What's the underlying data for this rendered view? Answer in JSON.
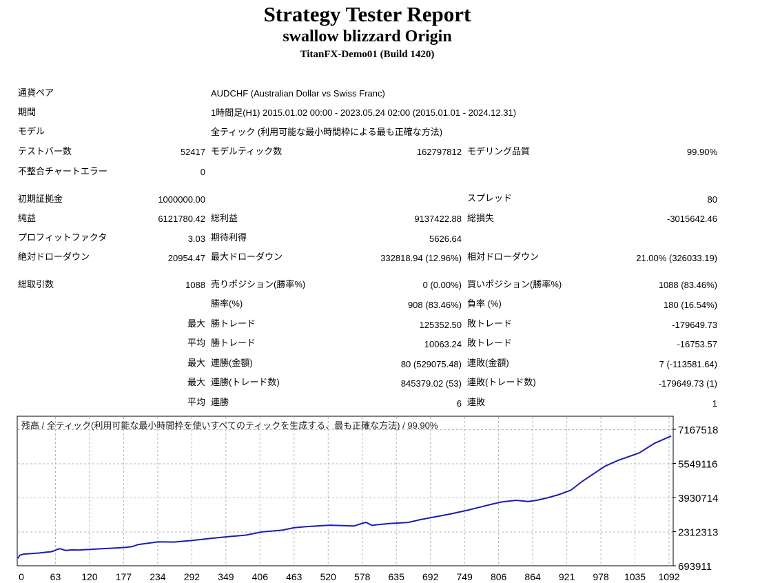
{
  "report": {
    "title": "Strategy Tester Report",
    "expert": "swallow blizzard Origin",
    "server": "TitanFX-Demo01 (Build 1420)"
  },
  "settings": {
    "symbol_label": "通貨ペア",
    "symbol_value": "AUDCHF (Australian Dollar vs Swiss Franc)",
    "period_label": "期間",
    "period_value": "1時間足(H1) 2015.01.02 00:00 - 2023.05.24 02:00 (2015.01.01 - 2024.12.31)",
    "model_label": "モデル",
    "model_value": "全ティック (利用可能な最小時間枠による最も正確な方法)",
    "bars_label": "テストバー数",
    "bars_value": "52417",
    "ticks_label": "モデルティック数",
    "ticks_value": "162797812",
    "quality_label": "モデリング品質",
    "quality_value": "99.90%",
    "errors_label": "不整合チャートエラー",
    "errors_value": "0"
  },
  "results": {
    "deposit_label": "初期証拠金",
    "deposit_value": "1000000.00",
    "spread_label": "スプレッド",
    "spread_value": "80",
    "net_label": "純益",
    "net_value": "6121780.42",
    "gross_profit_label": "総利益",
    "gross_profit_value": "9137422.88",
    "gross_loss_label": "総損失",
    "gross_loss_value": "-3015642.46",
    "pf_label": "プロフィットファクタ",
    "pf_value": "3.03",
    "payoff_label": "期待利得",
    "payoff_value": "5626.64",
    "abs_dd_label": "絶対ドローダウン",
    "abs_dd_value": "20954.47",
    "max_dd_label": "最大ドローダウン",
    "max_dd_value": "332818.94 (12.96%)",
    "rel_dd_label": "相対ドローダウン",
    "rel_dd_value": "21.00% (326033.19)"
  },
  "trades": {
    "total_label": "総取引数",
    "total_value": "1088",
    "short_label": "売りポジション(勝率%)",
    "short_value": "0 (0.00%)",
    "long_label": "買いポジション(勝率%)",
    "long_value": "1088 (83.46%)",
    "win_label": "勝率(%)",
    "win_value": "908 (83.46%)",
    "loss_label": "負率 (%)",
    "loss_value": "180 (16.54%)",
    "max_prefix": "最大",
    "avg_prefix": "平均",
    "largest_win_label": "勝トレード",
    "largest_win_value": "125352.50",
    "largest_loss_label": "敗トレード",
    "largest_loss_value": "-179649.73",
    "avg_win_label": "勝トレード",
    "avg_win_value": "10063.24",
    "avg_loss_label": "敗トレード",
    "avg_loss_value": "-16753.57",
    "max_consec_wins_amt_label": "連勝(金額)",
    "max_consec_wins_amt_value": "80 (529075.48)",
    "max_consec_loss_amt_label": "連敗(金額)",
    "max_consec_loss_amt_value": "7 (-113581.64)",
    "max_consec_wins_cnt_label": "連勝(トレード数)",
    "max_consec_wins_cnt_value": "845379.02 (53)",
    "max_consec_loss_cnt_label": "連敗(トレード数)",
    "max_consec_loss_cnt_value": "-179649.73 (1)",
    "avg_consec_wins_label": "連勝",
    "avg_consec_wins_value": "6",
    "avg_consec_loss_label": "連敗",
    "avg_consec_loss_value": "1"
  },
  "chart_data": {
    "type": "line",
    "title": "残高 / 全ティック(利用可能な最小時間枠を使いすべてのティックを生成する、最も正確な方法) / 99.90%",
    "x_ticks": [
      "0",
      "63",
      "120",
      "177",
      "234",
      "292",
      "349",
      "406",
      "463",
      "520",
      "578",
      "635",
      "692",
      "749",
      "806",
      "864",
      "921",
      "978",
      "1035",
      "1092"
    ],
    "y_ticks": [
      "7167518",
      "5549116",
      "3930714",
      "2312313",
      "693911"
    ],
    "xlim": [
      0,
      1088
    ],
    "ylim": [
      693911,
      7167518
    ],
    "grid": true,
    "line_color": "#1c1cb4",
    "series": [
      {
        "x": [
          0,
          3,
          10,
          25,
          35,
          45,
          55,
          60,
          65,
          70,
          80,
          90,
          100,
          120,
          140,
          160,
          177,
          190,
          200,
          234,
          260,
          292,
          320,
          349,
          380,
          406,
          440,
          450,
          460,
          480,
          520,
          560,
          575,
          580,
          590,
          600,
          620,
          650,
          670,
          692,
          720,
          749,
          770,
          790,
          806,
          830,
          850,
          864,
          880,
          900,
          921,
          940,
          960,
          978,
          1000,
          1035,
          1060,
          1088
        ],
        "y": [
          1040000,
          1190000,
          1250000,
          1280000,
          1300000,
          1330000,
          1360000,
          1400000,
          1470000,
          1500000,
          1420000,
          1450000,
          1440000,
          1470000,
          1500000,
          1530000,
          1560000,
          1600000,
          1700000,
          1830000,
          1820000,
          1900000,
          1990000,
          2070000,
          2150000,
          2300000,
          2380000,
          2440000,
          2500000,
          2550000,
          2620000,
          2580000,
          2720000,
          2750000,
          2610000,
          2650000,
          2700000,
          2750000,
          2880000,
          3000000,
          3150000,
          3330000,
          3480000,
          3620000,
          3720000,
          3800000,
          3740000,
          3800000,
          3900000,
          4060000,
          4280000,
          4700000,
          5080000,
          5420000,
          5700000,
          6050000,
          6500000,
          6850000
        ]
      }
    ]
  }
}
